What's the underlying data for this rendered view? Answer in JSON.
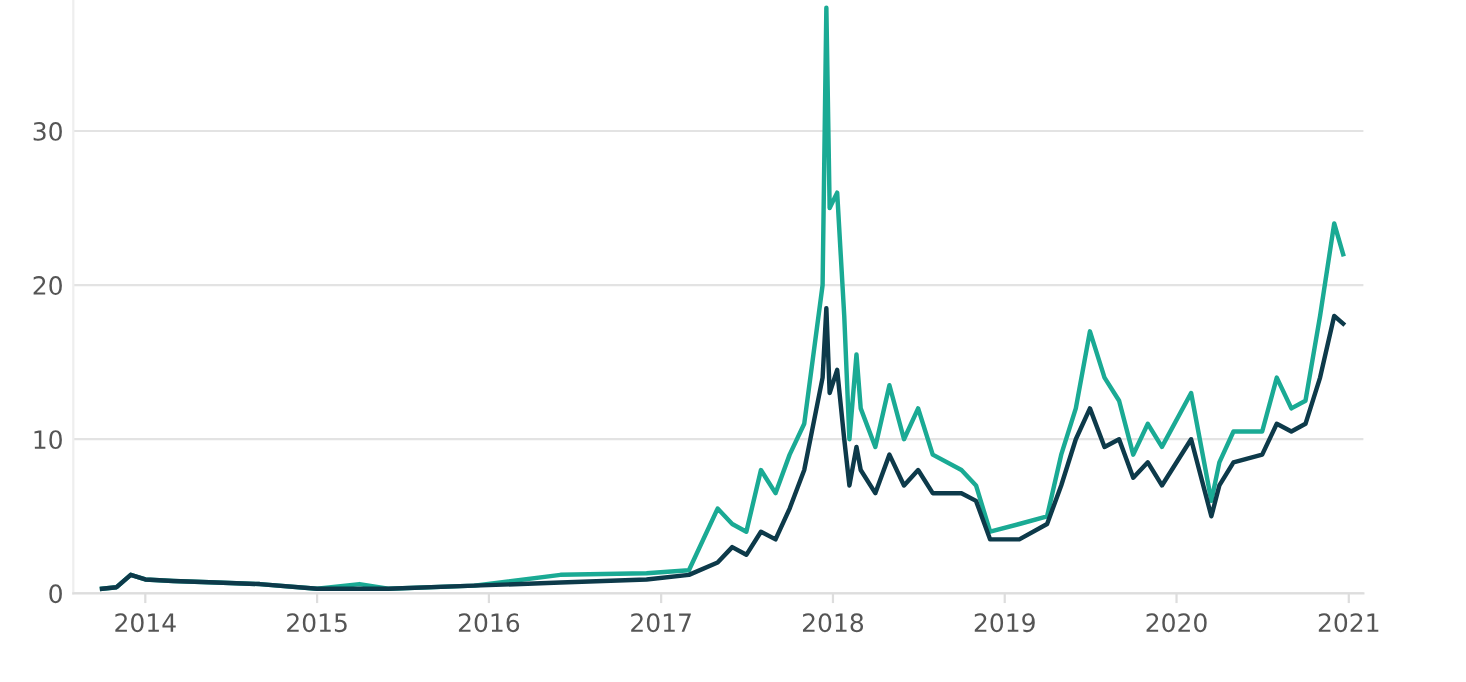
{
  "chart_data": {
    "type": "line",
    "x": [
      "2013-10-01",
      "2013-11-01",
      "2013-12-01",
      "2014-01-01",
      "2014-03-01",
      "2014-06-01",
      "2014-09-01",
      "2015-01-01",
      "2015-04-01",
      "2015-06-01",
      "2015-12-01",
      "2016-06-01",
      "2016-12-01",
      "2017-03-01",
      "2017-05-01",
      "2017-06-01",
      "2017-07-01",
      "2017-08-01",
      "2017-09-01",
      "2017-10-01",
      "2017-11-01",
      "2017-12-10",
      "2017-12-18",
      "2017-12-25",
      "2018-01-10",
      "2018-01-25",
      "2018-02-05",
      "2018-02-20",
      "2018-03-01",
      "2018-04-01",
      "2018-05-01",
      "2018-06-01",
      "2018-07-01",
      "2018-08-01",
      "2018-10-01",
      "2018-11-01",
      "2018-12-01",
      "2019-02-01",
      "2019-04-01",
      "2019-05-01",
      "2019-06-01",
      "2019-07-01",
      "2019-08-01",
      "2019-09-01",
      "2019-10-01",
      "2019-11-01",
      "2019-12-01",
      "2020-02-01",
      "2020-03-15",
      "2020-04-01",
      "2020-05-01",
      "2020-07-01",
      "2020-08-01",
      "2020-09-01",
      "2020-10-01",
      "2020-11-01",
      "2020-12-01",
      "2020-12-20"
    ],
    "series": [
      {
        "color": "#1aaa94",
        "values": [
          0.3,
          0.4,
          1.2,
          0.9,
          0.8,
          0.7,
          0.6,
          0.3,
          0.6,
          0.3,
          0.5,
          1.2,
          1.3,
          1.5,
          5.5,
          4.5,
          4.0,
          8.0,
          6.5,
          9.0,
          11.0,
          20.0,
          38.0,
          25.0,
          26.0,
          18.0,
          10.0,
          15.5,
          12.0,
          9.5,
          13.5,
          10.0,
          12.0,
          9.0,
          8.0,
          7.0,
          4.0,
          4.5,
          5.0,
          9.0,
          12.0,
          17.0,
          14.0,
          12.5,
          9.0,
          11.0,
          9.5,
          13.0,
          6.0,
          8.5,
          10.5,
          10.5,
          14.0,
          12.0,
          12.5,
          18.0,
          24.0,
          22.0
        ]
      },
      {
        "color": "#0d3a4a",
        "values": [
          0.3,
          0.4,
          1.2,
          0.9,
          0.8,
          0.7,
          0.6,
          0.3,
          0.3,
          0.3,
          0.5,
          0.7,
          0.9,
          1.2,
          2.0,
          3.0,
          2.5,
          4.0,
          3.5,
          5.5,
          8.0,
          14.0,
          18.5,
          13.0,
          14.5,
          10.0,
          7.0,
          9.5,
          8.0,
          6.5,
          9.0,
          7.0,
          8.0,
          6.5,
          6.5,
          6.0,
          3.5,
          3.5,
          4.5,
          7.0,
          10.0,
          12.0,
          9.5,
          10.0,
          7.5,
          8.5,
          7.0,
          10.0,
          5.0,
          7.0,
          8.5,
          9.0,
          11.0,
          10.5,
          11.0,
          14.0,
          18.0,
          17.5
        ]
      }
    ],
    "xlim": [
      "2013-08-01",
      "2021-02-01"
    ],
    "xticks": [
      {
        "value": "2014",
        "label": "2014"
      },
      {
        "value": "2015",
        "label": "2015"
      },
      {
        "value": "2016",
        "label": "2016"
      },
      {
        "value": "2017",
        "label": "2017"
      },
      {
        "value": "2018",
        "label": "2018"
      },
      {
        "value": "2019",
        "label": "2019"
      },
      {
        "value": "2020",
        "label": "2020"
      },
      {
        "value": "2021",
        "label": "2021"
      }
    ],
    "ylim": [
      0,
      38.5
    ],
    "yticks": [
      0,
      10,
      20,
      30
    ],
    "grid": "y"
  }
}
